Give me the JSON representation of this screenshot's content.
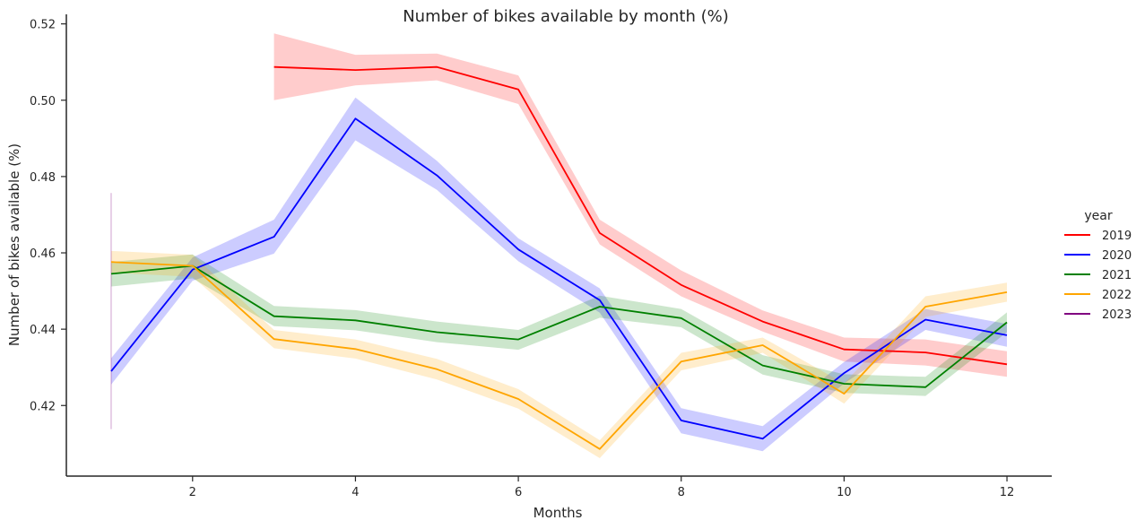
{
  "chart_data": {
    "type": "line",
    "title": "Number of bikes available by month (%)",
    "xlabel": "Months",
    "ylabel": "Number of bikes available (%)",
    "xlim": [
      0.45,
      12.55
    ],
    "ylim": [
      0.4015,
      0.5225
    ],
    "xticks": [
      2,
      4,
      6,
      8,
      10,
      12
    ],
    "yticks": [
      0.42,
      0.44,
      0.46,
      0.48,
      0.5,
      0.52
    ],
    "ytick_labels": [
      "0.42",
      "0.44",
      "0.46",
      "0.48",
      "0.50",
      "0.52"
    ],
    "grid": false,
    "legend": {
      "title": "year",
      "position": "right"
    },
    "series": [
      {
        "name": "2019",
        "color": "#ff0000",
        "x": [
          3,
          4,
          5,
          6,
          7,
          8,
          9,
          10,
          11,
          12
        ],
        "y": [
          0.5087,
          0.5079,
          0.5087,
          0.5028,
          0.4652,
          0.4516,
          0.442,
          0.4347,
          0.4339,
          0.4308
        ],
        "ci_low": [
          0.5,
          0.5039,
          0.5052,
          0.499,
          0.4622,
          0.4486,
          0.4394,
          0.4315,
          0.4305,
          0.4275
        ],
        "ci_high": [
          0.5175,
          0.5119,
          0.5122,
          0.5065,
          0.4687,
          0.4554,
          0.4449,
          0.4378,
          0.4373,
          0.4342
        ]
      },
      {
        "name": "2020",
        "color": "#0000ff",
        "x": [
          1,
          2,
          3,
          4,
          5,
          6,
          7,
          8,
          9,
          10,
          11,
          12
        ],
        "y": [
          0.429,
          0.4556,
          0.4642,
          0.4952,
          0.4803,
          0.4609,
          0.4476,
          0.4161,
          0.4113,
          0.4285,
          0.4425,
          0.4384
        ],
        "ci_low": [
          0.4255,
          0.4527,
          0.4598,
          0.4895,
          0.4765,
          0.4578,
          0.4443,
          0.4127,
          0.408,
          0.4258,
          0.4398,
          0.4354
        ],
        "ci_high": [
          0.4324,
          0.4588,
          0.4687,
          0.5007,
          0.4841,
          0.4638,
          0.4507,
          0.4193,
          0.4146,
          0.4314,
          0.4453,
          0.4414
        ]
      },
      {
        "name": "2021",
        "color": "#008000",
        "x": [
          1,
          2,
          3,
          4,
          5,
          6,
          7,
          8,
          9,
          10,
          11,
          12
        ],
        "y": [
          0.4545,
          0.4566,
          0.4434,
          0.4423,
          0.4392,
          0.4373,
          0.4459,
          0.4429,
          0.4305,
          0.4257,
          0.4248,
          0.4418
        ],
        "ci_low": [
          0.4512,
          0.4533,
          0.4408,
          0.4397,
          0.4366,
          0.4346,
          0.443,
          0.4405,
          0.4281,
          0.4233,
          0.4225,
          0.4392
        ],
        "ci_high": [
          0.4576,
          0.4596,
          0.4461,
          0.445,
          0.442,
          0.4398,
          0.4488,
          0.4453,
          0.4332,
          0.4282,
          0.4275,
          0.4444
        ]
      },
      {
        "name": "2022",
        "color": "#ffa500",
        "x": [
          1,
          2,
          3,
          4,
          5,
          6,
          7,
          8,
          9,
          10,
          11,
          12
        ],
        "y": [
          0.4576,
          0.4566,
          0.4374,
          0.4348,
          0.4295,
          0.4217,
          0.4086,
          0.4315,
          0.4358,
          0.4231,
          0.4459,
          0.4497
        ],
        "ci_low": [
          0.4548,
          0.4537,
          0.435,
          0.4323,
          0.4268,
          0.4192,
          0.4062,
          0.4292,
          0.4338,
          0.4205,
          0.4432,
          0.4472
        ],
        "ci_high": [
          0.4605,
          0.4595,
          0.4398,
          0.4373,
          0.4322,
          0.4243,
          0.4109,
          0.4338,
          0.4378,
          0.4258,
          0.4486,
          0.4522
        ]
      },
      {
        "name": "2023",
        "color": "#800080",
        "x": [
          1
        ],
        "y": [
          0.4447
        ],
        "ci_low": [
          0.4138
        ],
        "ci_high": [
          0.4757
        ]
      }
    ]
  }
}
